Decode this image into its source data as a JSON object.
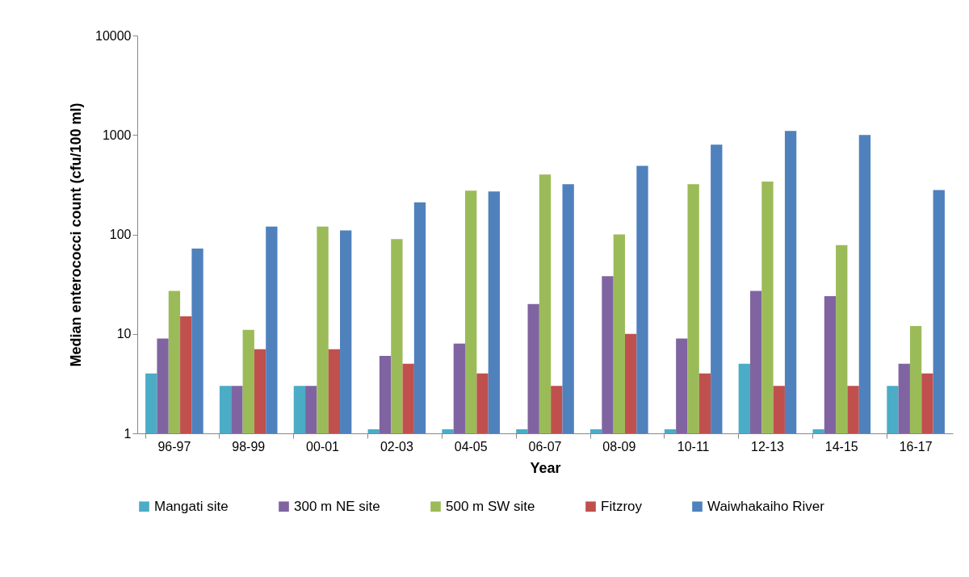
{
  "chart_data": {
    "type": "bar",
    "xlabel": "Year",
    "ylabel": "Median enterococci count (cfu/100 ml)",
    "categories": [
      "96-97",
      "98-99",
      "00-01",
      "02-03",
      "04-05",
      "06-07",
      "08-09",
      "10-11",
      "12-13",
      "14-15",
      "16-17"
    ],
    "series": [
      {
        "name": "Mangati site",
        "color": "#4bacc6",
        "values": [
          4,
          3,
          3,
          1.1,
          1.1,
          1.1,
          1.1,
          1.1,
          5,
          1.1,
          3
        ]
      },
      {
        "name": "300 m NE site",
        "color": "#8064a2",
        "values": [
          9,
          3,
          3,
          6,
          8,
          20,
          38,
          9,
          27,
          24,
          5
        ]
      },
      {
        "name": "500 m SW site",
        "color": "#9bbb59",
        "values": [
          27,
          11,
          120,
          90,
          275,
          400,
          100,
          320,
          340,
          78,
          12
        ]
      },
      {
        "name": "Fitzroy",
        "color": "#c0504d",
        "values": [
          15,
          7,
          7,
          5,
          4,
          3,
          10,
          4,
          3,
          3,
          4
        ]
      },
      {
        "name": "Waiwhakaiho River",
        "color": "#4f81bd",
        "values": [
          72,
          120,
          110,
          210,
          270,
          320,
          490,
          800,
          1100,
          1000,
          280
        ]
      }
    ],
    "ylim": [
      1,
      10000
    ],
    "yticks": [
      1,
      10,
      100,
      1000,
      10000
    ],
    "log": true,
    "grid": false,
    "legend": "bottom"
  }
}
